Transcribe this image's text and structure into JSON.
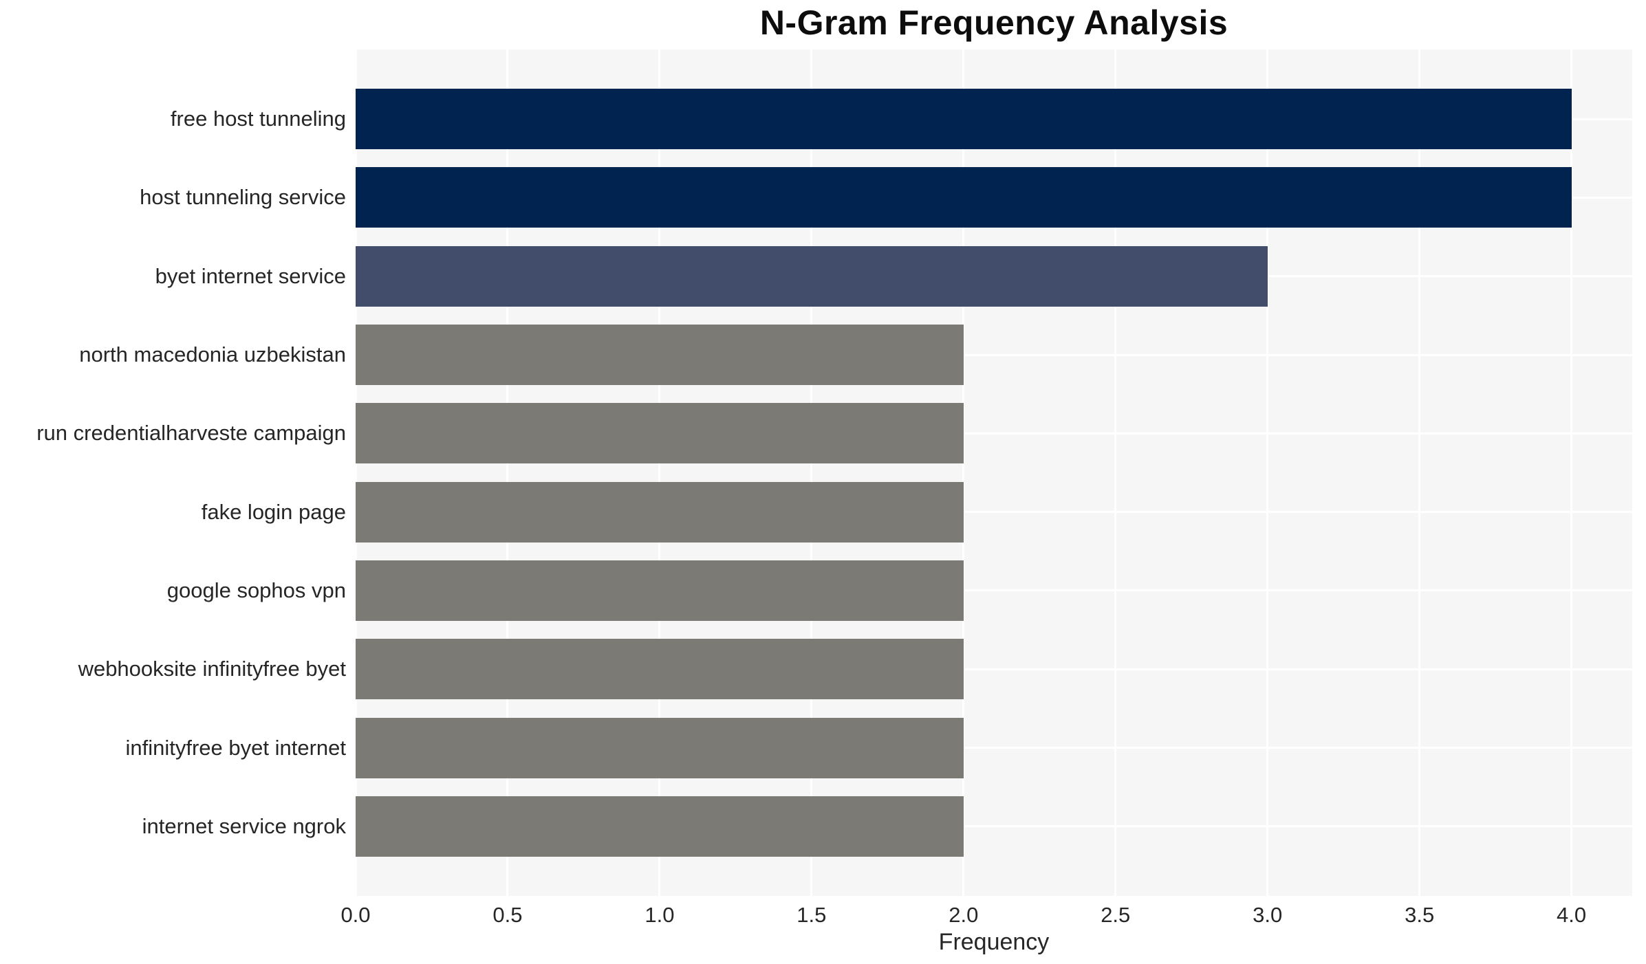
{
  "chart_data": {
    "type": "bar",
    "orientation": "horizontal",
    "title": "N-Gram Frequency Analysis",
    "xlabel": "Frequency",
    "ylabel": "",
    "categories": [
      "free host tunneling",
      "host tunneling service",
      "byet internet service",
      "north macedonia uzbekistan",
      "run credentialharveste campaign",
      "fake login page",
      "google sophos vpn",
      "webhooksite infinityfree byet",
      "infinityfree byet internet",
      "internet service ngrok"
    ],
    "values": [
      4,
      4,
      3,
      2,
      2,
      2,
      2,
      2,
      2,
      2
    ],
    "bar_colors": [
      "#00234F",
      "#00234F",
      "#424D6B",
      "#7B7A75",
      "#7B7A75",
      "#7B7A75",
      "#7B7A75",
      "#7B7A75",
      "#7B7A75",
      "#7B7A75"
    ],
    "xticks": [
      0.0,
      0.5,
      1.0,
      1.5,
      2.0,
      2.5,
      3.0,
      3.5,
      4.0
    ],
    "xtick_labels": [
      "0.0",
      "0.5",
      "1.0",
      "1.5",
      "2.0",
      "2.5",
      "3.0",
      "3.5",
      "4.0"
    ],
    "xlim": [
      0,
      4.2
    ],
    "grid": true,
    "legend": false,
    "colors": {
      "plot_background": "#F6F6F6",
      "figure_background": "#FFFFFF",
      "gridline": "#FFFFFF",
      "text": "#262626",
      "title_text": "#0D0D0D"
    }
  }
}
